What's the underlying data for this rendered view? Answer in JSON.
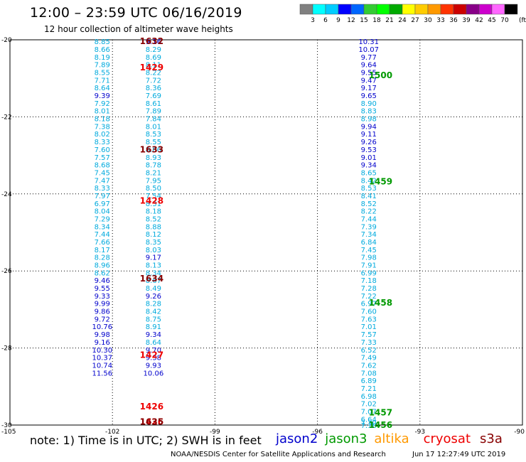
{
  "title": "12:00 – 23:59 UTC 06/16/2019",
  "subtitle": "12 hour collection of altimeter wave heights",
  "note": "note:  1) Time is in UTC;  2) SWH is in feet",
  "satellites": [
    {
      "name": "jason2",
      "color": "#0000cc"
    },
    {
      "name": "jason3",
      "color": "#009900"
    },
    {
      "name": "altika",
      "color": "#ff9900"
    },
    {
      "name": "cryosat",
      "color": "#ee0000"
    },
    {
      "name": "s3a",
      "color": "#880000"
    }
  ],
  "credit": "NOAA/NESDIS Center for Satellite Applications and Research",
  "timestamp": "Jun 17 12:27:49 UTC 2019",
  "color_scale": {
    "unit": "(ft)",
    "swatches": [
      "#808080",
      "#00ffff",
      "#00ccff",
      "#0000ff",
      "#0066ff",
      "#33cc33",
      "#00ff00",
      "#00aa00",
      "#ffff00",
      "#ffcc00",
      "#ff9900",
      "#ff3300",
      "#cc0000",
      "#880088",
      "#cc00cc",
      "#ff66ff",
      "#000000"
    ],
    "labels": [
      "3",
      "6",
      "9",
      "12",
      "15",
      "18",
      "21",
      "24",
      "27",
      "30",
      "33",
      "36",
      "39",
      "42",
      "45",
      "70"
    ]
  },
  "chart_data": {
    "type": "scatter",
    "xlabel": "",
    "ylabel": "",
    "xlim": [
      -105,
      -90
    ],
    "ylim": [
      -30,
      -20
    ],
    "xticks": [
      "-105",
      "-102",
      "-99",
      "-96",
      "-93",
      "-90"
    ],
    "yticks": [
      "-20",
      "-22",
      "-24",
      "-26",
      "-28",
      "-30"
    ],
    "values": [
      {
        "x": -102.3,
        "y": -20.04,
        "v": "8.85",
        "c": "#00aadd"
      },
      {
        "x": -102.3,
        "y": -20.24,
        "v": "8.66",
        "c": "#00aadd"
      },
      {
        "x": -102.3,
        "y": -20.44,
        "v": "8.19",
        "c": "#00aadd"
      },
      {
        "x": -102.3,
        "y": -20.64,
        "v": "7.89",
        "c": "#00aadd"
      },
      {
        "x": -102.3,
        "y": -20.84,
        "v": "8.55",
        "c": "#00aadd"
      },
      {
        "x": -102.3,
        "y": -21.04,
        "v": "7.71",
        "c": "#00aadd"
      },
      {
        "x": -102.3,
        "y": -21.24,
        "v": "8.64",
        "c": "#00aadd"
      },
      {
        "x": -102.3,
        "y": -21.44,
        "v": "9.39",
        "c": "#0000cc"
      },
      {
        "x": -102.3,
        "y": -21.64,
        "v": "7.92",
        "c": "#00aadd"
      },
      {
        "x": -102.3,
        "y": -21.84,
        "v": "8.01",
        "c": "#00aadd"
      },
      {
        "x": -102.3,
        "y": -22.04,
        "v": "8.18",
        "c": "#00aadd"
      },
      {
        "x": -102.3,
        "y": -22.24,
        "v": "7.38",
        "c": "#00aadd"
      },
      {
        "x": -102.3,
        "y": -22.44,
        "v": "8.02",
        "c": "#00aadd"
      },
      {
        "x": -102.3,
        "y": -22.64,
        "v": "8.33",
        "c": "#00aadd"
      },
      {
        "x": -102.3,
        "y": -22.84,
        "v": "7.60",
        "c": "#00aadd"
      },
      {
        "x": -102.3,
        "y": -23.04,
        "v": "7.57",
        "c": "#00aadd"
      },
      {
        "x": -102.3,
        "y": -23.24,
        "v": "8.68",
        "c": "#00aadd"
      },
      {
        "x": -102.3,
        "y": -23.44,
        "v": "7.45",
        "c": "#00aadd"
      },
      {
        "x": -102.3,
        "y": -23.64,
        "v": "7.47",
        "c": "#00aadd"
      },
      {
        "x": -102.3,
        "y": -23.84,
        "v": "8.33",
        "c": "#00aadd"
      },
      {
        "x": -102.3,
        "y": -24.04,
        "v": "7.97",
        "c": "#00aadd"
      },
      {
        "x": -102.3,
        "y": -24.24,
        "v": "6.97",
        "c": "#00aadd"
      },
      {
        "x": -102.3,
        "y": -24.44,
        "v": "8.04",
        "c": "#00aadd"
      },
      {
        "x": -102.3,
        "y": -24.64,
        "v": "7.29",
        "c": "#00aadd"
      },
      {
        "x": -102.3,
        "y": -24.84,
        "v": "8.34",
        "c": "#00aadd"
      },
      {
        "x": -102.3,
        "y": -25.04,
        "v": "7.44",
        "c": "#00aadd"
      },
      {
        "x": -102.3,
        "y": -25.24,
        "v": "7.66",
        "c": "#00aadd"
      },
      {
        "x": -102.3,
        "y": -25.44,
        "v": "8.17",
        "c": "#00aadd"
      },
      {
        "x": -102.3,
        "y": -25.64,
        "v": "8.28",
        "c": "#00aadd"
      },
      {
        "x": -102.3,
        "y": -25.84,
        "v": "8.96",
        "c": "#00aadd"
      },
      {
        "x": -102.3,
        "y": -26.04,
        "v": "8.62",
        "c": "#00aadd"
      },
      {
        "x": -102.3,
        "y": -26.24,
        "v": "9.46",
        "c": "#0000cc"
      },
      {
        "x": -102.3,
        "y": -26.44,
        "v": "9.55",
        "c": "#0000cc"
      },
      {
        "x": -102.3,
        "y": -26.64,
        "v": "9.33",
        "c": "#0000cc"
      },
      {
        "x": -102.3,
        "y": -26.84,
        "v": "9.99",
        "c": "#0000cc"
      },
      {
        "x": -102.3,
        "y": -27.04,
        "v": "9.86",
        "c": "#0000cc"
      },
      {
        "x": -102.3,
        "y": -27.24,
        "v": "9.72",
        "c": "#0000cc"
      },
      {
        "x": -102.3,
        "y": -27.44,
        "v": "10.76",
        "c": "#0000cc"
      },
      {
        "x": -102.3,
        "y": -27.64,
        "v": "9.98",
        "c": "#0000cc"
      },
      {
        "x": -102.3,
        "y": -27.84,
        "v": "9.16",
        "c": "#0000cc"
      },
      {
        "x": -102.3,
        "y": -28.04,
        "v": "10.30",
        "c": "#0000cc"
      },
      {
        "x": -102.3,
        "y": -28.24,
        "v": "10.37",
        "c": "#0000cc"
      },
      {
        "x": -102.3,
        "y": -28.44,
        "v": "10.74",
        "c": "#0000cc"
      },
      {
        "x": -102.3,
        "y": -28.64,
        "v": "11.56",
        "c": "#0000cc"
      },
      {
        "x": -100.8,
        "y": -20.04,
        "v": "9.16",
        "c": "#0000cc"
      },
      {
        "x": -100.8,
        "y": -20.24,
        "v": "8.29",
        "c": "#00aadd"
      },
      {
        "x": -100.8,
        "y": -20.44,
        "v": "8.69",
        "c": "#00aadd"
      },
      {
        "x": -100.8,
        "y": -20.64,
        "v": "8.11",
        "c": "#00aadd"
      },
      {
        "x": -100.8,
        "y": -20.84,
        "v": "8.22",
        "c": "#00aadd"
      },
      {
        "x": -100.8,
        "y": -21.04,
        "v": "7.72",
        "c": "#00aadd"
      },
      {
        "x": -100.8,
        "y": -21.24,
        "v": "8.36",
        "c": "#00aadd"
      },
      {
        "x": -100.8,
        "y": -21.44,
        "v": "7.69",
        "c": "#00aadd"
      },
      {
        "x": -100.8,
        "y": -21.64,
        "v": "8.61",
        "c": "#00aadd"
      },
      {
        "x": -100.8,
        "y": -21.84,
        "v": "7.89",
        "c": "#00aadd"
      },
      {
        "x": -100.8,
        "y": -22.04,
        "v": "7.84",
        "c": "#00aadd"
      },
      {
        "x": -100.8,
        "y": -22.24,
        "v": "8.01",
        "c": "#00aadd"
      },
      {
        "x": -100.8,
        "y": -22.44,
        "v": "8.53",
        "c": "#00aadd"
      },
      {
        "x": -100.8,
        "y": -22.64,
        "v": "8.55",
        "c": "#00aadd"
      },
      {
        "x": -100.8,
        "y": -22.84,
        "v": "8.06",
        "c": "#00aadd"
      },
      {
        "x": -100.8,
        "y": -23.04,
        "v": "8.93",
        "c": "#00aadd"
      },
      {
        "x": -100.8,
        "y": -23.24,
        "v": "8.78",
        "c": "#00aadd"
      },
      {
        "x": -100.8,
        "y": -23.44,
        "v": "8.21",
        "c": "#00aadd"
      },
      {
        "x": -100.8,
        "y": -23.64,
        "v": "7.95",
        "c": "#00aadd"
      },
      {
        "x": -100.8,
        "y": -23.84,
        "v": "8.50",
        "c": "#00aadd"
      },
      {
        "x": -100.8,
        "y": -24.04,
        "v": "7.54",
        "c": "#00aadd"
      },
      {
        "x": -100.8,
        "y": -24.24,
        "v": "8.31",
        "c": "#00aadd"
      },
      {
        "x": -100.8,
        "y": -24.44,
        "v": "8.18",
        "c": "#00aadd"
      },
      {
        "x": -100.8,
        "y": -24.64,
        "v": "8.52",
        "c": "#00aadd"
      },
      {
        "x": -100.8,
        "y": -24.84,
        "v": "8.88",
        "c": "#00aadd"
      },
      {
        "x": -100.8,
        "y": -25.04,
        "v": "8.12",
        "c": "#00aadd"
      },
      {
        "x": -100.8,
        "y": -25.24,
        "v": "8.35",
        "c": "#00aadd"
      },
      {
        "x": -100.8,
        "y": -25.44,
        "v": "8.03",
        "c": "#00aadd"
      },
      {
        "x": -100.8,
        "y": -25.64,
        "v": "9.17",
        "c": "#0000cc"
      },
      {
        "x": -100.8,
        "y": -25.84,
        "v": "8.13",
        "c": "#00aadd"
      },
      {
        "x": -100.8,
        "y": -26.04,
        "v": "8.34",
        "c": "#00aadd"
      },
      {
        "x": -100.8,
        "y": -26.24,
        "v": "8.67",
        "c": "#00aadd"
      },
      {
        "x": -100.8,
        "y": -26.44,
        "v": "8.49",
        "c": "#00aadd"
      },
      {
        "x": -100.8,
        "y": -26.64,
        "v": "9.26",
        "c": "#0000cc"
      },
      {
        "x": -100.8,
        "y": -26.84,
        "v": "8.28",
        "c": "#00aadd"
      },
      {
        "x": -100.8,
        "y": -27.04,
        "v": "8.42",
        "c": "#00aadd"
      },
      {
        "x": -100.8,
        "y": -27.24,
        "v": "8.75",
        "c": "#00aadd"
      },
      {
        "x": -100.8,
        "y": -27.44,
        "v": "8.91",
        "c": "#00aadd"
      },
      {
        "x": -100.8,
        "y": -27.64,
        "v": "9.34",
        "c": "#0000cc"
      },
      {
        "x": -100.8,
        "y": -27.84,
        "v": "8.64",
        "c": "#00aadd"
      },
      {
        "x": -100.8,
        "y": -28.04,
        "v": "9.70",
        "c": "#0000cc"
      },
      {
        "x": -100.8,
        "y": -28.24,
        "v": "9.38",
        "c": "#0000cc"
      },
      {
        "x": -100.8,
        "y": -28.44,
        "v": "9.93",
        "c": "#0000cc"
      },
      {
        "x": -100.8,
        "y": -28.64,
        "v": "10.06",
        "c": "#0000cc"
      },
      {
        "x": -94.5,
        "y": -20.04,
        "v": "10.31",
        "c": "#0000cc"
      },
      {
        "x": -94.5,
        "y": -20.24,
        "v": "10.07",
        "c": "#0000cc"
      },
      {
        "x": -94.5,
        "y": -20.44,
        "v": "9.77",
        "c": "#0000cc"
      },
      {
        "x": -94.5,
        "y": -20.64,
        "v": "9.64",
        "c": "#0000cc"
      },
      {
        "x": -94.5,
        "y": -20.84,
        "v": "9.55",
        "c": "#0000cc"
      },
      {
        "x": -94.5,
        "y": -21.04,
        "v": "9.47",
        "c": "#0000cc"
      },
      {
        "x": -94.5,
        "y": -21.24,
        "v": "9.17",
        "c": "#0000cc"
      },
      {
        "x": -94.5,
        "y": -21.44,
        "v": "9.65",
        "c": "#0000cc"
      },
      {
        "x": -94.5,
        "y": -21.64,
        "v": "8.90",
        "c": "#00aadd"
      },
      {
        "x": -94.5,
        "y": -21.84,
        "v": "8.83",
        "c": "#00aadd"
      },
      {
        "x": -94.5,
        "y": -22.04,
        "v": "8.98",
        "c": "#00aadd"
      },
      {
        "x": -94.5,
        "y": -22.24,
        "v": "9.94",
        "c": "#0000cc"
      },
      {
        "x": -94.5,
        "y": -22.44,
        "v": "9.11",
        "c": "#0000cc"
      },
      {
        "x": -94.5,
        "y": -22.64,
        "v": "9.26",
        "c": "#0000cc"
      },
      {
        "x": -94.5,
        "y": -22.84,
        "v": "9.53",
        "c": "#0000cc"
      },
      {
        "x": -94.5,
        "y": -23.04,
        "v": "9.01",
        "c": "#0000cc"
      },
      {
        "x": -94.5,
        "y": -23.24,
        "v": "9.34",
        "c": "#0000cc"
      },
      {
        "x": -94.5,
        "y": -23.44,
        "v": "8.65",
        "c": "#00aadd"
      },
      {
        "x": -94.5,
        "y": -23.64,
        "v": "8.42",
        "c": "#00aadd"
      },
      {
        "x": -94.5,
        "y": -23.84,
        "v": "8.53",
        "c": "#00aadd"
      },
      {
        "x": -94.5,
        "y": -24.04,
        "v": "8.41",
        "c": "#00aadd"
      },
      {
        "x": -94.5,
        "y": -24.24,
        "v": "8.52",
        "c": "#00aadd"
      },
      {
        "x": -94.5,
        "y": -24.44,
        "v": "8.22",
        "c": "#00aadd"
      },
      {
        "x": -94.5,
        "y": -24.64,
        "v": "7.44",
        "c": "#00aadd"
      },
      {
        "x": -94.5,
        "y": -24.84,
        "v": "7.39",
        "c": "#00aadd"
      },
      {
        "x": -94.5,
        "y": -25.04,
        "v": "7.34",
        "c": "#00aadd"
      },
      {
        "x": -94.5,
        "y": -25.24,
        "v": "6.84",
        "c": "#00aadd"
      },
      {
        "x": -94.5,
        "y": -25.44,
        "v": "7.45",
        "c": "#00aadd"
      },
      {
        "x": -94.5,
        "y": -25.64,
        "v": "7.98",
        "c": "#00aadd"
      },
      {
        "x": -94.5,
        "y": -25.84,
        "v": "7.91",
        "c": "#00aadd"
      },
      {
        "x": -94.5,
        "y": -26.04,
        "v": "6.99",
        "c": "#00aadd"
      },
      {
        "x": -94.5,
        "y": -26.24,
        "v": "7.18",
        "c": "#00aadd"
      },
      {
        "x": -94.5,
        "y": -26.44,
        "v": "7.28",
        "c": "#00aadd"
      },
      {
        "x": -94.5,
        "y": -26.64,
        "v": "7.22",
        "c": "#00aadd"
      },
      {
        "x": -94.5,
        "y": -26.84,
        "v": "6.97",
        "c": "#00aadd"
      },
      {
        "x": -94.5,
        "y": -27.04,
        "v": "7.60",
        "c": "#00aadd"
      },
      {
        "x": -94.5,
        "y": -27.24,
        "v": "7.63",
        "c": "#00aadd"
      },
      {
        "x": -94.5,
        "y": -27.44,
        "v": "7.01",
        "c": "#00aadd"
      },
      {
        "x": -94.5,
        "y": -27.64,
        "v": "7.57",
        "c": "#00aadd"
      },
      {
        "x": -94.5,
        "y": -27.84,
        "v": "7.33",
        "c": "#00aadd"
      },
      {
        "x": -94.5,
        "y": -28.04,
        "v": "6.52",
        "c": "#00aadd"
      },
      {
        "x": -94.5,
        "y": -28.24,
        "v": "7.49",
        "c": "#00aadd"
      },
      {
        "x": -94.5,
        "y": -28.44,
        "v": "7.62",
        "c": "#00aadd"
      },
      {
        "x": -94.5,
        "y": -28.64,
        "v": "7.08",
        "c": "#00aadd"
      },
      {
        "x": -94.5,
        "y": -28.84,
        "v": "6.89",
        "c": "#00aadd"
      },
      {
        "x": -94.5,
        "y": -29.04,
        "v": "7.21",
        "c": "#00aadd"
      },
      {
        "x": -94.5,
        "y": -29.24,
        "v": "6.98",
        "c": "#00aadd"
      },
      {
        "x": -94.5,
        "y": -29.44,
        "v": "7.02",
        "c": "#00aadd"
      },
      {
        "x": -94.5,
        "y": -29.64,
        "v": "7.07",
        "c": "#00aadd"
      },
      {
        "x": -94.5,
        "y": -29.84,
        "v": "6.64",
        "c": "#00aadd"
      },
      {
        "x": -94.5,
        "y": -29.94,
        "v": "7.30",
        "c": "#00aadd"
      },
      {
        "x": -94.5,
        "y": -30.0,
        "v": "7.16",
        "c": "#00aadd"
      }
    ],
    "time_labels": [
      {
        "x": -101.2,
        "y": -20.04,
        "t": "1632",
        "c": "#880000"
      },
      {
        "x": -101.2,
        "y": -20.72,
        "t": "1429",
        "c": "#ee0000"
      },
      {
        "x": -101.2,
        "y": -22.85,
        "t": "1633",
        "c": "#880000"
      },
      {
        "x": -101.2,
        "y": -24.18,
        "t": "1428",
        "c": "#ee0000"
      },
      {
        "x": -101.2,
        "y": -26.2,
        "t": "1634",
        "c": "#880000"
      },
      {
        "x": -101.2,
        "y": -28.18,
        "t": "1427",
        "c": "#ee0000"
      },
      {
        "x": -101.2,
        "y": -29.52,
        "t": "1426",
        "c": "#ee0000"
      },
      {
        "x": -101.2,
        "y": -29.92,
        "t": "1426",
        "c": "#ee0000"
      },
      {
        "x": -101.2,
        "y": -29.92,
        "t": "1635",
        "c": "#880000"
      },
      {
        "x": -94.5,
        "y": -20.92,
        "t": "1500",
        "c": "#009900"
      },
      {
        "x": -94.5,
        "y": -23.68,
        "t": "1459",
        "c": "#009900"
      },
      {
        "x": -94.5,
        "y": -26.83,
        "t": "1458",
        "c": "#009900"
      },
      {
        "x": -94.5,
        "y": -29.68,
        "t": "1457",
        "c": "#009900"
      },
      {
        "x": -94.5,
        "y": -30.0,
        "t": "1456",
        "c": "#009900"
      }
    ]
  }
}
